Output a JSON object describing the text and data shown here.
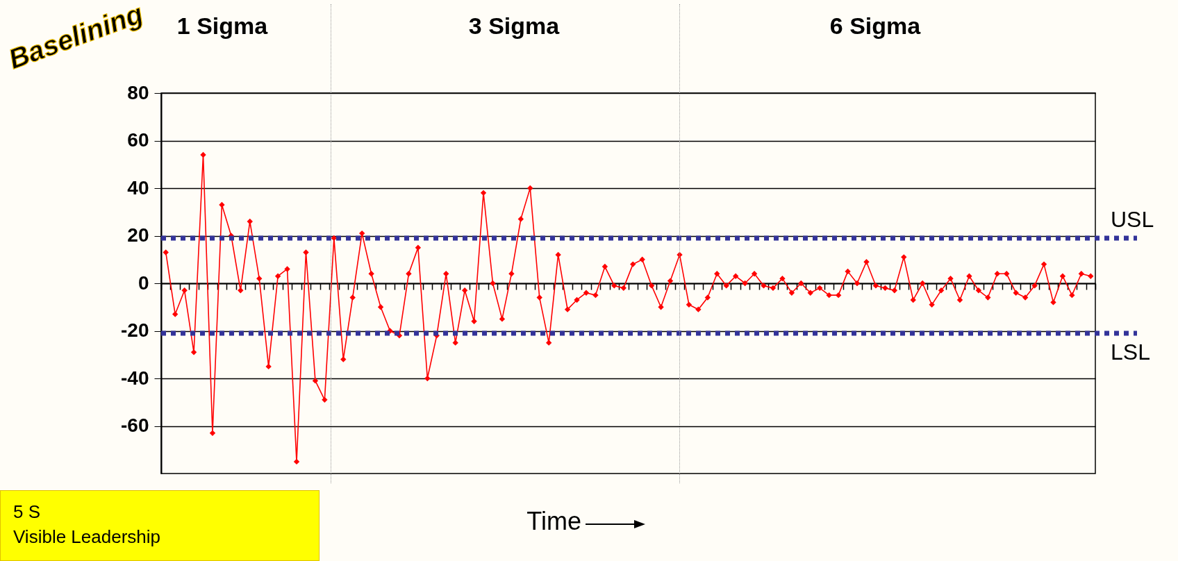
{
  "chart_data": {
    "type": "line",
    "xlabel": "Time",
    "categories": [
      null,
      null,
      null,
      null,
      null,
      null,
      null,
      null,
      null,
      null,
      null,
      null,
      null,
      null,
      null,
      null,
      null,
      null,
      null,
      null,
      null,
      null,
      null,
      null,
      null,
      null,
      null,
      null,
      null,
      null,
      null,
      null,
      null,
      null,
      null,
      null,
      null,
      null,
      null,
      null,
      null,
      null,
      null,
      null,
      null,
      null,
      null,
      null,
      null,
      null,
      null,
      null,
      null,
      null,
      null,
      null,
      null,
      null,
      null,
      null,
      null,
      null,
      null,
      null,
      null,
      null,
      null,
      null,
      null,
      null,
      null,
      null,
      null,
      null,
      null,
      null,
      null,
      null,
      null,
      null,
      null,
      null,
      null,
      null,
      null,
      null,
      null,
      null,
      null,
      null,
      null,
      null,
      null,
      null,
      null,
      null,
      null,
      null,
      null,
      null
    ],
    "series": [
      {
        "color": "#ff0000",
        "values": [
          13,
          -13,
          -3,
          -29,
          54,
          -63,
          33,
          20,
          -3,
          26,
          2,
          -35,
          3,
          6,
          -75,
          13,
          -41,
          -49,
          19,
          -32,
          -6,
          21,
          4,
          -10,
          -20,
          -22,
          4,
          15,
          -40,
          -22,
          4,
          -25,
          -3,
          -16,
          38,
          0,
          -15,
          4,
          27,
          40,
          -6,
          -25,
          12,
          -11,
          -7,
          -4,
          -5,
          7,
          -1,
          -2,
          8,
          10,
          -1,
          -10,
          1,
          12,
          -9,
          -11,
          -6,
          4,
          -1,
          3,
          0,
          4,
          -1,
          -2,
          2,
          -4,
          0,
          -4,
          -2,
          -5,
          -5,
          5,
          0,
          9,
          -1,
          -2,
          -3,
          11,
          -7,
          0,
          -9,
          -3,
          2,
          -7,
          3,
          -3,
          -6,
          4,
          4,
          -4,
          -6,
          -1,
          8,
          -8,
          3,
          -5,
          4,
          3
        ]
      }
    ],
    "ylim": [
      -80,
      80
    ],
    "yticks": [
      -60,
      -40,
      -20,
      0,
      20,
      40,
      60,
      80
    ],
    "grid": "y",
    "marker": "diamond",
    "line_style": "solid",
    "ref_lines": [
      {
        "axis": "y",
        "value": 19,
        "label": "USL",
        "color": "#333399",
        "line_style": "dotted"
      },
      {
        "axis": "y",
        "value": -21,
        "label": "LSL",
        "color": "#333399",
        "line_style": "dotted"
      }
    ],
    "annotations": [
      "1 Sigma",
      "3 Sigma",
      "6 Sigma",
      "Baselining",
      "5 S",
      "Visible Leadership"
    ]
  }
}
